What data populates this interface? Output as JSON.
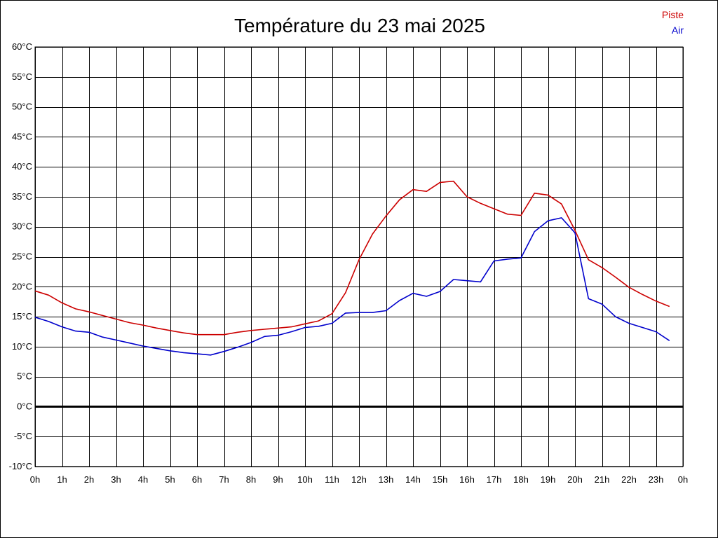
{
  "chart_data": {
    "type": "line",
    "title": "Température du 23 mai 2025",
    "xlabel": "",
    "ylabel": "",
    "x_ticks": [
      "0h",
      "1h",
      "2h",
      "3h",
      "4h",
      "5h",
      "6h",
      "7h",
      "8h",
      "9h",
      "10h",
      "11h",
      "12h",
      "13h",
      "14h",
      "15h",
      "16h",
      "17h",
      "18h",
      "19h",
      "20h",
      "21h",
      "22h",
      "23h",
      "0h"
    ],
    "y_ticks": [
      "60°C",
      "55°C",
      "50°C",
      "45°C",
      "40°C",
      "35°C",
      "30°C",
      "25°C",
      "20°C",
      "15°C",
      "10°C",
      "5°C",
      "0°C",
      "-5°C",
      "-10°C"
    ],
    "xlim": [
      0,
      24
    ],
    "ylim": [
      -10,
      60
    ],
    "grid": true,
    "zero_line": true,
    "legend_position": "top-right",
    "series": [
      {
        "name": "Piste",
        "color": "#cc0000",
        "x": [
          0,
          0.5,
          1,
          1.5,
          2,
          2.5,
          3,
          3.5,
          4,
          4.5,
          5,
          5.5,
          6,
          6.5,
          7,
          7.5,
          8,
          8.5,
          9,
          9.5,
          10,
          10.5,
          11,
          11.5,
          12,
          12.5,
          13,
          13.5,
          14,
          14.5,
          15,
          15.5,
          16,
          16.5,
          17,
          17.5,
          18,
          18.5,
          19,
          19.5,
          20,
          20.5,
          21,
          21.5,
          22,
          22.5,
          23,
          23.5
        ],
        "values": [
          19.3,
          18.6,
          17.3,
          16.3,
          15.8,
          15.2,
          14.6,
          14.0,
          13.6,
          13.1,
          12.7,
          12.3,
          12.0,
          12.0,
          12.0,
          12.4,
          12.7,
          12.9,
          13.1,
          13.3,
          13.8,
          14.3,
          15.5,
          19.0,
          24.5,
          28.8,
          31.8,
          34.5,
          36.2,
          35.9,
          37.4,
          37.6,
          35.0,
          33.9,
          33.0,
          32.1,
          31.9,
          35.6,
          35.3,
          33.8,
          29.4,
          24.5,
          23.2,
          21.6,
          19.9,
          18.7,
          17.6,
          16.7
        ]
      },
      {
        "name": "Air",
        "color": "#0000cc",
        "x": [
          0,
          0.5,
          1,
          1.5,
          2,
          2.5,
          3,
          3.5,
          4,
          4.5,
          5,
          5.5,
          6,
          6.5,
          7,
          7.5,
          8,
          8.5,
          9,
          9.5,
          10,
          10.5,
          11,
          11.5,
          12,
          12.5,
          13,
          13.5,
          14,
          14.5,
          15,
          15.5,
          16,
          16.5,
          17,
          17.5,
          18,
          18.5,
          19,
          19.5,
          20,
          20.5,
          21,
          21.5,
          22,
          22.5,
          23,
          23.5
        ],
        "values": [
          14.9,
          14.2,
          13.3,
          12.6,
          12.4,
          11.6,
          11.1,
          10.6,
          10.1,
          9.7,
          9.3,
          9.0,
          8.8,
          8.6,
          9.2,
          9.9,
          10.7,
          11.7,
          11.9,
          12.5,
          13.2,
          13.4,
          13.9,
          15.6,
          15.7,
          15.7,
          16.0,
          17.7,
          18.9,
          18.4,
          19.2,
          21.2,
          21.0,
          20.8,
          24.3,
          24.6,
          24.8,
          29.2,
          31.0,
          31.5,
          29.0,
          18.0,
          17.1,
          15.0,
          13.9,
          13.2,
          12.5,
          11.0
        ]
      }
    ]
  }
}
